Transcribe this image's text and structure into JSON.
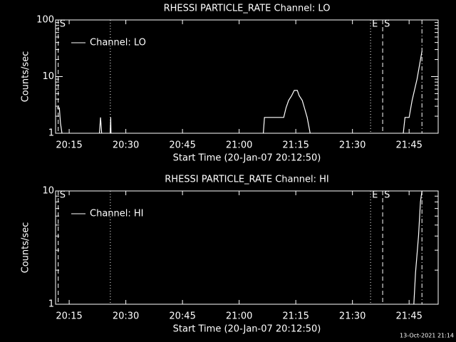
{
  "chart_data": [
    {
      "type": "line",
      "title": "RHESSI PARTICLE_RATE Channel: LO",
      "ylabel": "Counts/sec",
      "xlabel": "Start Time (20-Jan-07 20:12:50)",
      "log_y": true,
      "legend": "upper left",
      "color": "#ffffff",
      "xlim": [
        11.4,
        112.7
      ],
      "xticks": [
        {
          "value": 15,
          "label": "20:15"
        },
        {
          "value": 30,
          "label": "20:30"
        },
        {
          "value": 45,
          "label": "20:45"
        },
        {
          "value": 60,
          "label": "21:00"
        },
        {
          "value": 75,
          "label": "21:15"
        },
        {
          "value": 90,
          "label": "21:30"
        },
        {
          "value": 105,
          "label": "21:45"
        }
      ],
      "ylim": [
        1,
        100
      ],
      "yticks": [
        1,
        10,
        100
      ],
      "series": [
        {
          "name": "Channel: LO",
          "color": "#ffffff",
          "x": [
            11.8,
            12.4,
            12.7,
            13.3,
            null,
            22.9,
            23.3,
            23.7,
            null,
            25.8,
            26.0,
            26.1,
            null,
            66.3,
            66.7,
            71.8,
            72.4,
            73.1,
            73.9,
            74.6,
            75.4,
            75.9,
            76.7,
            77.3,
            78.0,
            78.8,
            79.7,
            null,
            103.3,
            103.9,
            105.0,
            105.8,
            107.1,
            108.4
          ],
          "values": [
            2.8,
            2.8,
            1.5,
            0.8,
            null,
            0.8,
            1.9,
            0.8,
            null,
            0.8,
            1.9,
            0.8,
            null,
            0.8,
            1.9,
            1.9,
            2.8,
            3.8,
            4.6,
            5.7,
            5.7,
            4.6,
            3.8,
            2.8,
            1.9,
            1.0,
            0.8,
            null,
            0.8,
            1.9,
            1.9,
            3.8,
            9,
            28
          ]
        }
      ],
      "markers": [
        {
          "x": 12.1,
          "style": "dashed",
          "label": "S"
        },
        {
          "x": 25.9,
          "style": "dotted"
        },
        {
          "x": 94.8,
          "style": "dotted",
          "label": "E"
        },
        {
          "x": 98.0,
          "style": "dashed",
          "label": "S"
        },
        {
          "x": 108.4,
          "style": "dashdot"
        }
      ]
    },
    {
      "type": "line",
      "title": "RHESSI PARTICLE_RATE Channel: HI",
      "ylabel": "Counts/sec",
      "xlabel": "Start Time (20-Jan-07 20:12:50)",
      "log_y": true,
      "legend": "upper left",
      "color": "#ffffff",
      "xlim": [
        11.4,
        112.7
      ],
      "xticks": [
        {
          "value": 15,
          "label": "20:15"
        },
        {
          "value": 30,
          "label": "20:30"
        },
        {
          "value": 45,
          "label": "20:45"
        },
        {
          "value": 60,
          "label": "21:00"
        },
        {
          "value": 75,
          "label": "21:15"
        },
        {
          "value": 90,
          "label": "21:30"
        },
        {
          "value": 105,
          "label": "21:45"
        }
      ],
      "ylim": [
        1,
        10
      ],
      "yticks": [
        1,
        10
      ],
      "series": [
        {
          "name": "Channel: HI",
          "color": "#ffffff",
          "x": [
            106.1,
            106.7,
            107.5,
            108.0,
            108.4
          ],
          "values": [
            0.8,
            1.9,
            4,
            8,
            10
          ]
        }
      ],
      "markers": [
        {
          "x": 12.1,
          "style": "dashed",
          "label": "S"
        },
        {
          "x": 25.9,
          "style": "dotted"
        },
        {
          "x": 94.8,
          "style": "dotted",
          "label": "E"
        },
        {
          "x": 98.0,
          "style": "dashed",
          "label": "S"
        },
        {
          "x": 108.4,
          "style": "dashdot"
        }
      ]
    }
  ],
  "footer": "13-Oct-2021 21:14"
}
